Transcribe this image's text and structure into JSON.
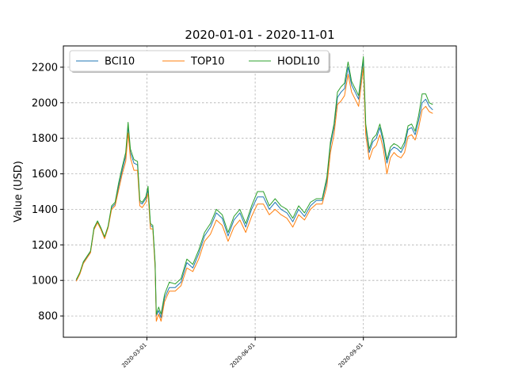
{
  "chart_data": {
    "type": "line",
    "title": "2020-01-01 - 2020-11-01",
    "xlabel": "",
    "ylabel": "Value (USD)",
    "xlim": [
      "2019-12-21",
      "2020-11-19"
    ],
    "ylim": [
      680,
      2320
    ],
    "yticks": [
      800,
      1000,
      1200,
      1400,
      1600,
      1800,
      2000,
      2200
    ],
    "xticks": [
      "2020-03-01",
      "2020-06-01",
      "2020-09-01"
    ],
    "grid": true,
    "legend": {
      "position": "top-left",
      "columns": 3
    },
    "series": [
      {
        "name": "BCI10",
        "color": "#1f77b4",
        "points": [
          [
            "2020-01-01",
            1000
          ],
          [
            "2020-01-04",
            1040
          ],
          [
            "2020-01-07",
            1100
          ],
          [
            "2020-01-10",
            1130
          ],
          [
            "2020-01-13",
            1160
          ],
          [
            "2020-01-16",
            1290
          ],
          [
            "2020-01-19",
            1330
          ],
          [
            "2020-01-22",
            1290
          ],
          [
            "2020-01-25",
            1240
          ],
          [
            "2020-01-28",
            1300
          ],
          [
            "2020-01-31",
            1410
          ],
          [
            "2020-02-03",
            1430
          ],
          [
            "2020-02-06",
            1530
          ],
          [
            "2020-02-09",
            1620
          ],
          [
            "2020-02-12",
            1700
          ],
          [
            "2020-02-14",
            1870
          ],
          [
            "2020-02-16",
            1720
          ],
          [
            "2020-02-19",
            1660
          ],
          [
            "2020-02-22",
            1650
          ],
          [
            "2020-02-24",
            1440
          ],
          [
            "2020-02-26",
            1430
          ],
          [
            "2020-02-29",
            1460
          ],
          [
            "2020-03-02",
            1510
          ],
          [
            "2020-03-04",
            1310
          ],
          [
            "2020-03-06",
            1300
          ],
          [
            "2020-03-08",
            1090
          ],
          [
            "2020-03-09",
            800
          ],
          [
            "2020-03-11",
            830
          ],
          [
            "2020-03-13",
            790
          ],
          [
            "2020-03-16",
            900
          ],
          [
            "2020-03-20",
            960
          ],
          [
            "2020-03-25",
            960
          ],
          [
            "2020-03-30",
            990
          ],
          [
            "2020-04-04",
            1100
          ],
          [
            "2020-04-09",
            1070
          ],
          [
            "2020-04-14",
            1150
          ],
          [
            "2020-04-19",
            1250
          ],
          [
            "2020-04-24",
            1300
          ],
          [
            "2020-04-29",
            1380
          ],
          [
            "2020-05-04",
            1350
          ],
          [
            "2020-05-09",
            1250
          ],
          [
            "2020-05-14",
            1340
          ],
          [
            "2020-05-19",
            1380
          ],
          [
            "2020-05-24",
            1300
          ],
          [
            "2020-05-29",
            1400
          ],
          [
            "2020-06-03",
            1470
          ],
          [
            "2020-06-08",
            1470
          ],
          [
            "2020-06-13",
            1400
          ],
          [
            "2020-06-18",
            1440
          ],
          [
            "2020-06-23",
            1400
          ],
          [
            "2020-06-28",
            1380
          ],
          [
            "2020-07-03",
            1330
          ],
          [
            "2020-07-08",
            1400
          ],
          [
            "2020-07-13",
            1360
          ],
          [
            "2020-07-18",
            1420
          ],
          [
            "2020-07-23",
            1450
          ],
          [
            "2020-07-28",
            1450
          ],
          [
            "2020-08-01",
            1560
          ],
          [
            "2020-08-04",
            1760
          ],
          [
            "2020-08-07",
            1860
          ],
          [
            "2020-08-10",
            2030
          ],
          [
            "2020-08-13",
            2060
          ],
          [
            "2020-08-16",
            2080
          ],
          [
            "2020-08-19",
            2200
          ],
          [
            "2020-08-22",
            2100
          ],
          [
            "2020-08-25",
            2060
          ],
          [
            "2020-08-28",
            2020
          ],
          [
            "2020-09-01",
            2240
          ],
          [
            "2020-09-03",
            1860
          ],
          [
            "2020-09-06",
            1720
          ],
          [
            "2020-09-09",
            1780
          ],
          [
            "2020-09-12",
            1800
          ],
          [
            "2020-09-15",
            1860
          ],
          [
            "2020-09-18",
            1780
          ],
          [
            "2020-09-21",
            1660
          ],
          [
            "2020-09-24",
            1730
          ],
          [
            "2020-09-27",
            1750
          ],
          [
            "2020-09-30",
            1740
          ],
          [
            "2020-10-03",
            1720
          ],
          [
            "2020-10-06",
            1760
          ],
          [
            "2020-10-09",
            1850
          ],
          [
            "2020-10-12",
            1860
          ],
          [
            "2020-10-15",
            1820
          ],
          [
            "2020-10-18",
            1900
          ],
          [
            "2020-10-21",
            2000
          ],
          [
            "2020-10-24",
            2020
          ],
          [
            "2020-10-27",
            1980
          ],
          [
            "2020-10-30",
            1960
          ]
        ]
      },
      {
        "name": "TOP10",
        "color": "#ff7f0e",
        "points": [
          [
            "2020-01-01",
            995
          ],
          [
            "2020-01-04",
            1035
          ],
          [
            "2020-01-07",
            1095
          ],
          [
            "2020-01-10",
            1125
          ],
          [
            "2020-01-13",
            1155
          ],
          [
            "2020-01-16",
            1285
          ],
          [
            "2020-01-19",
            1325
          ],
          [
            "2020-01-22",
            1285
          ],
          [
            "2020-01-25",
            1235
          ],
          [
            "2020-01-28",
            1295
          ],
          [
            "2020-01-31",
            1400
          ],
          [
            "2020-02-03",
            1420
          ],
          [
            "2020-02-06",
            1510
          ],
          [
            "2020-02-09",
            1600
          ],
          [
            "2020-02-12",
            1670
          ],
          [
            "2020-02-14",
            1830
          ],
          [
            "2020-02-16",
            1690
          ],
          [
            "2020-02-19",
            1620
          ],
          [
            "2020-02-22",
            1620
          ],
          [
            "2020-02-24",
            1420
          ],
          [
            "2020-02-26",
            1410
          ],
          [
            "2020-02-29",
            1440
          ],
          [
            "2020-03-02",
            1490
          ],
          [
            "2020-03-04",
            1290
          ],
          [
            "2020-03-06",
            1290
          ],
          [
            "2020-03-08",
            1070
          ],
          [
            "2020-03-09",
            770
          ],
          [
            "2020-03-11",
            810
          ],
          [
            "2020-03-13",
            770
          ],
          [
            "2020-03-16",
            880
          ],
          [
            "2020-03-20",
            940
          ],
          [
            "2020-03-25",
            940
          ],
          [
            "2020-03-30",
            970
          ],
          [
            "2020-04-04",
            1070
          ],
          [
            "2020-04-09",
            1050
          ],
          [
            "2020-04-14",
            1120
          ],
          [
            "2020-04-19",
            1220
          ],
          [
            "2020-04-24",
            1260
          ],
          [
            "2020-04-29",
            1340
          ],
          [
            "2020-05-04",
            1310
          ],
          [
            "2020-05-09",
            1220
          ],
          [
            "2020-05-14",
            1300
          ],
          [
            "2020-05-19",
            1340
          ],
          [
            "2020-05-24",
            1270
          ],
          [
            "2020-05-29",
            1360
          ],
          [
            "2020-06-03",
            1430
          ],
          [
            "2020-06-08",
            1430
          ],
          [
            "2020-06-13",
            1370
          ],
          [
            "2020-06-18",
            1400
          ],
          [
            "2020-06-23",
            1370
          ],
          [
            "2020-06-28",
            1350
          ],
          [
            "2020-07-03",
            1300
          ],
          [
            "2020-07-08",
            1370
          ],
          [
            "2020-07-13",
            1340
          ],
          [
            "2020-07-18",
            1400
          ],
          [
            "2020-07-23",
            1430
          ],
          [
            "2020-07-28",
            1430
          ],
          [
            "2020-08-01",
            1530
          ],
          [
            "2020-08-04",
            1720
          ],
          [
            "2020-08-07",
            1820
          ],
          [
            "2020-08-10",
            1990
          ],
          [
            "2020-08-13",
            2010
          ],
          [
            "2020-08-16",
            2040
          ],
          [
            "2020-08-19",
            2160
          ],
          [
            "2020-08-22",
            2060
          ],
          [
            "2020-08-25",
            2020
          ],
          [
            "2020-08-28",
            1980
          ],
          [
            "2020-09-01",
            2200
          ],
          [
            "2020-09-03",
            1820
          ],
          [
            "2020-09-06",
            1680
          ],
          [
            "2020-09-09",
            1740
          ],
          [
            "2020-09-12",
            1760
          ],
          [
            "2020-09-15",
            1820
          ],
          [
            "2020-09-18",
            1740
          ],
          [
            "2020-09-21",
            1600
          ],
          [
            "2020-09-24",
            1690
          ],
          [
            "2020-09-27",
            1720
          ],
          [
            "2020-09-30",
            1700
          ],
          [
            "2020-10-03",
            1690
          ],
          [
            "2020-10-06",
            1720
          ],
          [
            "2020-10-09",
            1810
          ],
          [
            "2020-10-12",
            1820
          ],
          [
            "2020-10-15",
            1790
          ],
          [
            "2020-10-18",
            1860
          ],
          [
            "2020-10-21",
            1960
          ],
          [
            "2020-10-24",
            1980
          ],
          [
            "2020-10-27",
            1950
          ],
          [
            "2020-10-30",
            1940
          ]
        ]
      },
      {
        "name": "HODL10",
        "color": "#2ca02c",
        "points": [
          [
            "2020-01-01",
            1005
          ],
          [
            "2020-01-04",
            1045
          ],
          [
            "2020-01-07",
            1105
          ],
          [
            "2020-01-10",
            1135
          ],
          [
            "2020-01-13",
            1165
          ],
          [
            "2020-01-16",
            1295
          ],
          [
            "2020-01-19",
            1335
          ],
          [
            "2020-01-22",
            1295
          ],
          [
            "2020-01-25",
            1245
          ],
          [
            "2020-01-28",
            1305
          ],
          [
            "2020-01-31",
            1420
          ],
          [
            "2020-02-03",
            1440
          ],
          [
            "2020-02-06",
            1550
          ],
          [
            "2020-02-09",
            1640
          ],
          [
            "2020-02-12",
            1720
          ],
          [
            "2020-02-14",
            1890
          ],
          [
            "2020-02-16",
            1740
          ],
          [
            "2020-02-19",
            1680
          ],
          [
            "2020-02-22",
            1670
          ],
          [
            "2020-02-24",
            1450
          ],
          [
            "2020-02-26",
            1440
          ],
          [
            "2020-02-29",
            1470
          ],
          [
            "2020-03-02",
            1530
          ],
          [
            "2020-03-04",
            1320
          ],
          [
            "2020-03-06",
            1310
          ],
          [
            "2020-03-08",
            1100
          ],
          [
            "2020-03-09",
            810
          ],
          [
            "2020-03-11",
            850
          ],
          [
            "2020-03-13",
            810
          ],
          [
            "2020-03-16",
            920
          ],
          [
            "2020-03-20",
            990
          ],
          [
            "2020-03-25",
            980
          ],
          [
            "2020-03-30",
            1010
          ],
          [
            "2020-04-04",
            1120
          ],
          [
            "2020-04-09",
            1090
          ],
          [
            "2020-04-14",
            1170
          ],
          [
            "2020-04-19",
            1270
          ],
          [
            "2020-04-24",
            1320
          ],
          [
            "2020-04-29",
            1400
          ],
          [
            "2020-05-04",
            1370
          ],
          [
            "2020-05-09",
            1270
          ],
          [
            "2020-05-14",
            1360
          ],
          [
            "2020-05-19",
            1400
          ],
          [
            "2020-05-24",
            1320
          ],
          [
            "2020-05-29",
            1420
          ],
          [
            "2020-06-03",
            1500
          ],
          [
            "2020-06-08",
            1500
          ],
          [
            "2020-06-13",
            1420
          ],
          [
            "2020-06-18",
            1460
          ],
          [
            "2020-06-23",
            1420
          ],
          [
            "2020-06-28",
            1400
          ],
          [
            "2020-07-03",
            1350
          ],
          [
            "2020-07-08",
            1420
          ],
          [
            "2020-07-13",
            1380
          ],
          [
            "2020-07-18",
            1440
          ],
          [
            "2020-07-23",
            1460
          ],
          [
            "2020-07-28",
            1460
          ],
          [
            "2020-08-01",
            1580
          ],
          [
            "2020-08-04",
            1780
          ],
          [
            "2020-08-07",
            1880
          ],
          [
            "2020-08-10",
            2060
          ],
          [
            "2020-08-13",
            2090
          ],
          [
            "2020-08-16",
            2110
          ],
          [
            "2020-08-19",
            2230
          ],
          [
            "2020-08-22",
            2120
          ],
          [
            "2020-08-25",
            2080
          ],
          [
            "2020-08-28",
            2040
          ],
          [
            "2020-09-01",
            2260
          ],
          [
            "2020-09-03",
            1880
          ],
          [
            "2020-09-06",
            1740
          ],
          [
            "2020-09-09",
            1800
          ],
          [
            "2020-09-12",
            1820
          ],
          [
            "2020-09-15",
            1880
          ],
          [
            "2020-09-18",
            1800
          ],
          [
            "2020-09-21",
            1680
          ],
          [
            "2020-09-24",
            1750
          ],
          [
            "2020-09-27",
            1770
          ],
          [
            "2020-09-30",
            1760
          ],
          [
            "2020-10-03",
            1740
          ],
          [
            "2020-10-06",
            1780
          ],
          [
            "2020-10-09",
            1870
          ],
          [
            "2020-10-12",
            1880
          ],
          [
            "2020-10-15",
            1840
          ],
          [
            "2020-10-18",
            1930
          ],
          [
            "2020-10-21",
            2050
          ],
          [
            "2020-10-24",
            2050
          ],
          [
            "2020-10-27",
            2000
          ],
          [
            "2020-10-30",
            1990
          ]
        ]
      }
    ]
  }
}
